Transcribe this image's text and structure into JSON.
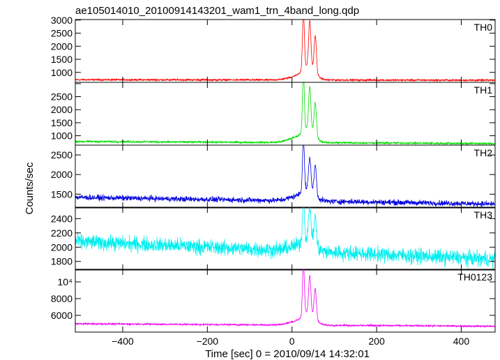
{
  "chart_data": {
    "type": "line",
    "title": "ae105014010_20100914143201_wam1_trn_4band_long.qdp",
    "xlabel": "Time [sec] 0 = 2010/09/14 14:32:01",
    "ylabel": "Counts/sec",
    "xlim": [
      -512,
      480
    ],
    "x_ticks": [
      -400,
      -200,
      0,
      200,
      400
    ],
    "x_tick_labels": [
      "−400",
      "−200",
      "0",
      "200",
      "400"
    ],
    "peaks_x": [
      27,
      42,
      55
    ],
    "panels": [
      {
        "name": "TH0",
        "color": "#ff0000",
        "ylim": [
          620,
          3020
        ],
        "ticks": [
          1000,
          1500,
          2000,
          2500,
          3000
        ],
        "tick_labels": [
          "1000",
          "1500",
          "2000",
          "2500",
          "3000"
        ],
        "baseline_start": 720,
        "baseline_end": 700,
        "noise": 30,
        "bump": 130,
        "peaks": [
          2950,
          2500,
          2150
        ]
      },
      {
        "name": "TH1",
        "color": "#00dd00",
        "ylim": [
          640,
          3050
        ],
        "ticks": [
          1000,
          1500,
          2000,
          2500,
          3000
        ],
        "tick_labels": [
          "1000",
          "1500",
          "2000",
          "2500"
        ],
        "baseline_start": 780,
        "baseline_end": 700,
        "noise": 35,
        "bump": 180,
        "peaks": [
          3050,
          2450,
          2050
        ]
      },
      {
        "name": "TH2",
        "color": "#0000dd",
        "ylim": [
          1150,
          2750
        ],
        "ticks": [
          1500,
          2000,
          2500
        ],
        "tick_labels": [
          "1500",
          "2000",
          "2500"
        ],
        "baseline_start": 1420,
        "baseline_end": 1250,
        "noise": 60,
        "bump": 100,
        "peaks": [
          2700,
          2150,
          2100
        ]
      },
      {
        "name": "TH3",
        "color": "#00eeee",
        "ylim": [
          1680,
          2560
        ],
        "ticks": [
          1800,
          2000,
          2200,
          2400
        ],
        "tick_labels": [
          "1800",
          "2000",
          "2200",
          "2400"
        ],
        "baseline_start": 2080,
        "baseline_end": 1830,
        "noise": 90,
        "bump": 60,
        "peaks": [
          2550,
          2400,
          2350
        ]
      },
      {
        "name": "TH0123",
        "color": "#ee00ee",
        "ylim": [
          4000,
          11500
        ],
        "ticks": [
          6000,
          8000,
          10000
        ],
        "tick_labels": [
          "6000",
          "8000",
          "10⁴"
        ],
        "baseline_start": 5000,
        "baseline_end": 4700,
        "noise": 90,
        "bump": 400,
        "peaks": [
          11300,
          9400,
          8600
        ]
      }
    ]
  }
}
